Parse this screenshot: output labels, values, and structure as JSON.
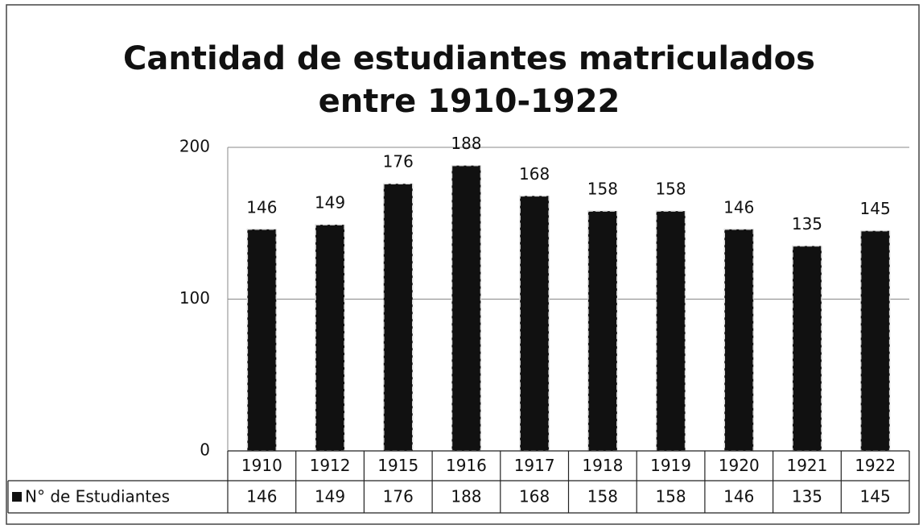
{
  "chart_data": {
    "type": "bar",
    "title": [
      "Cantidad de estudiantes matriculados",
      "entre 1910-1922"
    ],
    "categories": [
      "1910",
      "1912",
      "1915",
      "1916",
      "1917",
      "1918",
      "1919",
      "1920",
      "1921",
      "1922"
    ],
    "series": [
      {
        "name": "N° de Estudiantes",
        "color": "#111111",
        "values": [
          146,
          149,
          176,
          188,
          168,
          158,
          158,
          146,
          135,
          145
        ]
      }
    ],
    "ylim": [
      0,
      200
    ],
    "yticks": [
      0,
      100,
      200
    ],
    "grid": true,
    "data_table": true
  }
}
